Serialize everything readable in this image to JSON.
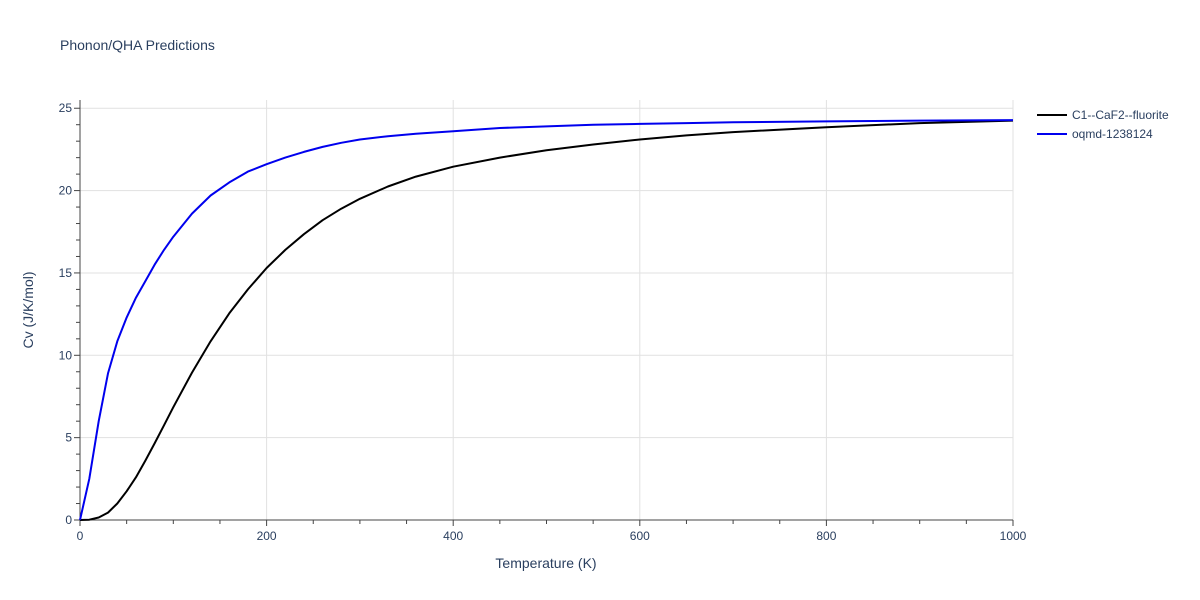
{
  "chart_data": {
    "type": "line",
    "title": "Phonon/QHA Predictions",
    "xlabel": "Temperature (K)",
    "ylabel": "Cv (J/K/mol)",
    "xlim": [
      0,
      1000
    ],
    "ylim": [
      0,
      25.5
    ],
    "xticks": [
      0,
      200,
      400,
      600,
      800,
      1000
    ],
    "yticks": [
      0,
      5,
      10,
      15,
      20,
      25
    ],
    "grid": true,
    "legend": "top-right",
    "series": [
      {
        "name": "C1--CaF2--fluorite",
        "color": "#000000",
        "x": [
          0,
          10,
          20,
          30,
          40,
          50,
          60,
          70,
          80,
          90,
          100,
          120,
          140,
          160,
          180,
          200,
          220,
          240,
          260,
          280,
          300,
          330,
          360,
          400,
          450,
          500,
          550,
          600,
          650,
          700,
          800,
          900,
          1000
        ],
        "y": [
          0,
          0.02,
          0.15,
          0.45,
          1.0,
          1.75,
          2.6,
          3.6,
          4.65,
          5.75,
          6.85,
          8.95,
          10.85,
          12.55,
          14.0,
          15.3,
          16.4,
          17.35,
          18.2,
          18.9,
          19.5,
          20.25,
          20.85,
          21.45,
          22.0,
          22.45,
          22.8,
          23.1,
          23.35,
          23.55,
          23.85,
          24.1,
          24.25
        ]
      },
      {
        "name": "oqmd-1238124",
        "color": "#0000ee",
        "x": [
          0,
          10,
          20,
          30,
          40,
          50,
          60,
          70,
          80,
          90,
          100,
          120,
          140,
          160,
          180,
          200,
          220,
          240,
          260,
          280,
          300,
          330,
          360,
          400,
          450,
          500,
          550,
          600,
          650,
          700,
          800,
          900,
          1000
        ],
        "y": [
          0,
          2.5,
          6.0,
          8.9,
          10.85,
          12.3,
          13.5,
          14.5,
          15.5,
          16.4,
          17.2,
          18.6,
          19.7,
          20.5,
          21.15,
          21.6,
          22.0,
          22.35,
          22.65,
          22.9,
          23.1,
          23.3,
          23.45,
          23.6,
          23.8,
          23.9,
          24.0,
          24.05,
          24.1,
          24.15,
          24.2,
          24.25,
          24.28
        ]
      }
    ]
  }
}
